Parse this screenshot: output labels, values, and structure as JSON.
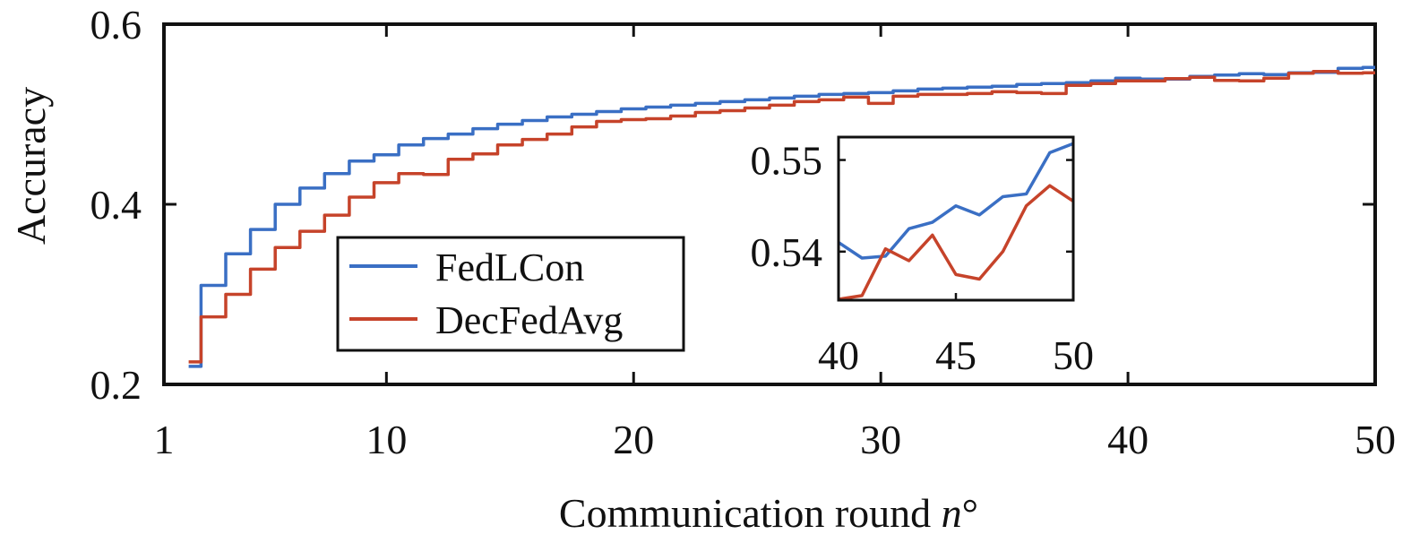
{
  "chart_data": {
    "type": "line",
    "xlabel": "Communication round",
    "xlabel_var": "n",
    "xlabel_suffix": "°",
    "ylabel": "Accuracy",
    "xlim": [
      1,
      50
    ],
    "ylim": [
      0.2,
      0.6
    ],
    "xticks": [
      1,
      10,
      20,
      30,
      40,
      50
    ],
    "xtick_labels": [
      "1",
      "10",
      "20",
      "30",
      "40",
      "50"
    ],
    "yticks": [
      0.2,
      0.4,
      0.6
    ],
    "ytick_labels": [
      "0.2",
      "0.4",
      "0.6"
    ],
    "grid": false,
    "legend_position": "lower-left",
    "x": [
      2,
      3,
      4,
      5,
      6,
      7,
      8,
      9,
      10,
      11,
      12,
      13,
      14,
      15,
      16,
      17,
      18,
      19,
      20,
      21,
      22,
      23,
      24,
      25,
      26,
      27,
      28,
      29,
      30,
      31,
      32,
      33,
      34,
      35,
      36,
      37,
      38,
      39,
      40,
      41,
      42,
      43,
      44,
      45,
      46,
      47,
      48,
      49,
      50
    ],
    "series": [
      {
        "name": "FedLCon",
        "color": "#3a6fc4",
        "values": [
          0.22,
          0.31,
          0.345,
          0.372,
          0.4,
          0.418,
          0.434,
          0.448,
          0.455,
          0.466,
          0.473,
          0.478,
          0.484,
          0.489,
          0.493,
          0.497,
          0.5,
          0.503,
          0.506,
          0.508,
          0.51,
          0.512,
          0.514,
          0.516,
          0.518,
          0.52,
          0.522,
          0.523,
          0.524,
          0.526,
          0.528,
          0.529,
          0.53,
          0.531,
          0.533,
          0.534,
          0.535,
          0.537,
          0.54,
          0.539,
          0.539,
          0.542,
          0.5435,
          0.545,
          0.544,
          0.546,
          0.5465,
          0.551,
          0.552
        ]
      },
      {
        "name": "DecFedAvg",
        "color": "#c6432a",
        "values": [
          0.225,
          0.275,
          0.3,
          0.328,
          0.352,
          0.37,
          0.388,
          0.408,
          0.424,
          0.434,
          0.433,
          0.45,
          0.456,
          0.466,
          0.472,
          0.478,
          0.486,
          0.492,
          0.494,
          0.495,
          0.498,
          0.502,
          0.504,
          0.507,
          0.51,
          0.514,
          0.516,
          0.519,
          0.512,
          0.52,
          0.522,
          0.522,
          0.523,
          0.525,
          0.524,
          0.523,
          0.532,
          0.534,
          0.537,
          0.537,
          0.5395,
          0.541,
          0.5375,
          0.537,
          0.54,
          0.5455,
          0.5475,
          0.5455,
          0.546
        ]
      }
    ],
    "inset": {
      "xlim": [
        40,
        50
      ],
      "ylim": [
        0.5347,
        0.5525
      ],
      "xticks": [
        40,
        45,
        50
      ],
      "xtick_labels": [
        "40",
        "45",
        "50"
      ],
      "yticks": [
        0.54,
        0.55
      ],
      "ytick_labels": [
        "0.54",
        "0.55"
      ],
      "x": [
        40,
        41,
        42,
        43,
        44,
        45,
        46,
        47,
        48,
        49,
        50
      ],
      "series": [
        {
          "name": "FedLCon",
          "color": "#3a6fc4",
          "values": [
            0.541,
            0.5393,
            0.5395,
            0.5425,
            0.5432,
            0.545,
            0.544,
            0.546,
            0.5463,
            0.5508,
            0.5518
          ]
        },
        {
          "name": "DecFedAvg",
          "color": "#c6432a",
          "values": [
            0.5348,
            0.5352,
            0.5403,
            0.539,
            0.5418,
            0.5375,
            0.537,
            0.54,
            0.545,
            0.5472,
            0.5455
          ]
        }
      ]
    }
  }
}
